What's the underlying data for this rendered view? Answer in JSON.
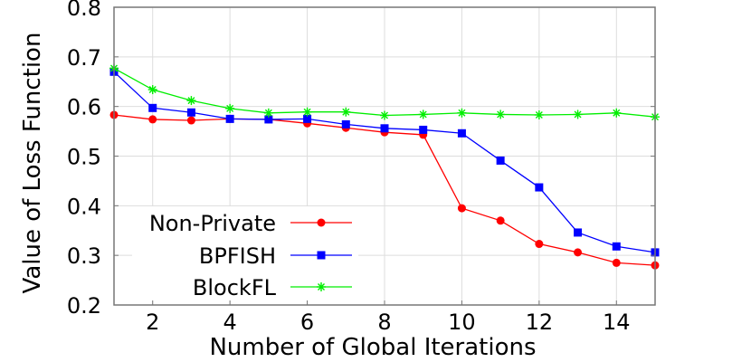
{
  "chart_data": {
    "type": "line",
    "title": "",
    "xlabel": "Number of Global Iterations",
    "ylabel": "Value of Loss Function",
    "xlim": [
      1,
      15
    ],
    "ylim": [
      0.2,
      0.8
    ],
    "grid": true,
    "legend_position": "lower-left (inside)",
    "x": [
      1,
      2,
      3,
      4,
      5,
      6,
      7,
      8,
      9,
      10,
      11,
      12,
      13,
      14,
      15
    ],
    "x_ticks": [
      2,
      4,
      6,
      8,
      10,
      12,
      14
    ],
    "x_tick_labels": [
      "2",
      "4",
      "6",
      "8",
      "10",
      "12",
      "14"
    ],
    "y_ticks": [
      0.2,
      0.3,
      0.4,
      0.5,
      0.6,
      0.7,
      0.8
    ],
    "y_tick_labels": [
      "0.2",
      "0.3",
      "0.4",
      "0.5",
      "0.6",
      "0.7",
      "0.8"
    ],
    "series": [
      {
        "name": "Non-Private",
        "color": "#ff0000",
        "marker": "circle",
        "values": [
          0.583,
          0.574,
          0.572,
          0.575,
          0.574,
          0.566,
          0.557,
          0.548,
          0.543,
          0.395,
          0.37,
          0.323,
          0.306,
          0.285,
          0.28
        ]
      },
      {
        "name": "BPFISH",
        "color": "#0000ff",
        "marker": "square",
        "values": [
          0.67,
          0.597,
          0.588,
          0.575,
          0.574,
          0.575,
          0.564,
          0.556,
          0.553,
          0.546,
          0.491,
          0.437,
          0.346,
          0.318,
          0.306
        ]
      },
      {
        "name": "BlockFL",
        "color": "#00ee00",
        "marker": "asterisk",
        "values": [
          0.677,
          0.634,
          0.612,
          0.596,
          0.587,
          0.589,
          0.589,
          0.582,
          0.584,
          0.587,
          0.584,
          0.583,
          0.584,
          0.587,
          0.579
        ]
      }
    ]
  },
  "legend": {
    "items": [
      {
        "label": "Non-Private"
      },
      {
        "label": "BPFISH"
      },
      {
        "label": "BlockFL"
      }
    ]
  },
  "axes": {
    "xlabel": "Number of Global Iterations",
    "ylabel": "Value of Loss Function"
  }
}
